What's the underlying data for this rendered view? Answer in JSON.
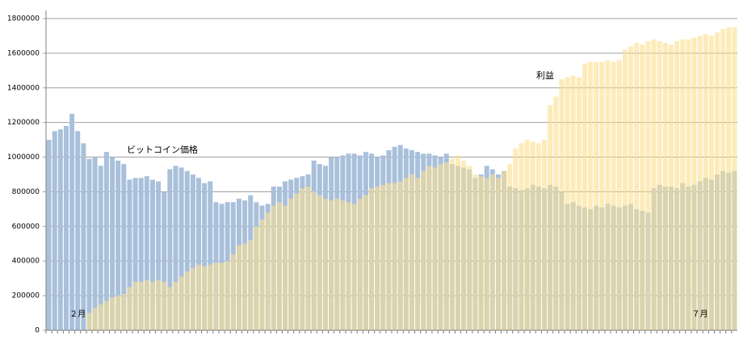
{
  "chart_data": {
    "type": "bar",
    "categories": [
      null,
      null,
      null,
      null,
      null,
      "２月",
      null,
      null,
      null,
      null,
      null,
      null,
      null,
      null,
      null,
      null,
      null,
      null,
      null,
      null,
      null,
      null,
      null,
      null,
      null,
      null,
      null,
      null,
      null,
      null,
      null,
      null,
      null,
      null,
      null,
      null,
      null,
      null,
      null,
      null,
      null,
      null,
      null,
      null,
      null,
      null,
      null,
      null,
      null,
      null,
      null,
      null,
      null,
      null,
      null,
      null,
      null,
      null,
      null,
      null,
      null,
      null,
      null,
      null,
      null,
      null,
      null,
      null,
      null,
      null,
      null,
      null,
      null,
      null,
      null,
      null,
      null,
      null,
      null,
      null,
      null,
      null,
      null,
      null,
      null,
      null,
      null,
      null,
      null,
      null,
      null,
      null,
      null,
      null,
      null,
      null,
      null,
      null,
      null,
      null,
      null,
      null,
      null,
      null,
      null,
      null,
      null,
      null,
      null,
      null,
      null,
      null,
      null,
      "７月",
      null,
      null,
      null,
      null,
      null,
      null
    ],
    "series": [
      {
        "name": "ビットコイン価格",
        "color": "#a9c0db",
        "values": [
          1100000,
          1150000,
          1160000,
          1180000,
          1250000,
          1150000,
          1080000,
          990000,
          1000000,
          950000,
          1030000,
          1000000,
          980000,
          960000,
          870000,
          880000,
          880000,
          890000,
          870000,
          860000,
          800000,
          930000,
          950000,
          940000,
          920000,
          900000,
          880000,
          850000,
          860000,
          740000,
          730000,
          740000,
          740000,
          760000,
          750000,
          780000,
          740000,
          720000,
          730000,
          830000,
          830000,
          860000,
          870000,
          880000,
          890000,
          900000,
          980000,
          960000,
          950000,
          1000000,
          1000000,
          1010000,
          1020000,
          1020000,
          1010000,
          1030000,
          1020000,
          1000000,
          1010000,
          1040000,
          1060000,
          1070000,
          1050000,
          1040000,
          1030000,
          1020000,
          1020000,
          1010000,
          1000000,
          1020000,
          960000,
          950000,
          940000,
          930000,
          880000,
          900000,
          950000,
          930000,
          900000,
          920000,
          830000,
          820000,
          810000,
          820000,
          840000,
          830000,
          820000,
          840000,
          830000,
          800000,
          730000,
          740000,
          720000,
          710000,
          700000,
          720000,
          710000,
          730000,
          720000,
          710000,
          720000,
          730000,
          700000,
          690000,
          680000,
          820000,
          840000,
          830000,
          830000,
          820000,
          850000,
          830000,
          840000,
          860000,
          880000,
          870000,
          900000,
          920000,
          910000,
          920000
        ]
      },
      {
        "name": "利益",
        "color": "#fbe08c",
        "values": [
          0,
          0,
          0,
          0,
          0,
          0,
          0,
          100000,
          130000,
          150000,
          170000,
          190000,
          200000,
          210000,
          250000,
          280000,
          280000,
          290000,
          280000,
          290000,
          280000,
          250000,
          280000,
          310000,
          340000,
          360000,
          380000,
          370000,
          380000,
          390000,
          390000,
          400000,
          440000,
          490000,
          500000,
          520000,
          600000,
          640000,
          680000,
          720000,
          740000,
          720000,
          760000,
          790000,
          820000,
          830000,
          800000,
          780000,
          760000,
          750000,
          760000,
          750000,
          740000,
          730000,
          760000,
          780000,
          820000,
          830000,
          840000,
          850000,
          850000,
          860000,
          880000,
          900000,
          880000,
          920000,
          950000,
          940000,
          960000,
          970000,
          990000,
          1010000,
          980000,
          950000,
          900000,
          890000,
          880000,
          900000,
          880000,
          920000,
          960000,
          1050000,
          1080000,
          1100000,
          1090000,
          1080000,
          1100000,
          1300000,
          1350000,
          1450000,
          1460000,
          1470000,
          1460000,
          1540000,
          1550000,
          1550000,
          1550000,
          1560000,
          1550000,
          1560000,
          1620000,
          1640000,
          1660000,
          1650000,
          1670000,
          1680000,
          1670000,
          1660000,
          1650000,
          1670000,
          1680000,
          1680000,
          1690000,
          1700000,
          1710000,
          1700000,
          1720000,
          1740000,
          1750000,
          1750000
        ]
      }
    ],
    "annotations": [
      {
        "text": "ビットコイン価格",
        "color": "#2f4f8f"
      },
      {
        "text": "利益",
        "color": "#c00000"
      }
    ],
    "ylim": [
      0,
      1800000
    ],
    "yticks": [
      0,
      200000,
      400000,
      600000,
      800000,
      1000000,
      1200000,
      1400000,
      1600000,
      1800000
    ],
    "grid": true
  }
}
